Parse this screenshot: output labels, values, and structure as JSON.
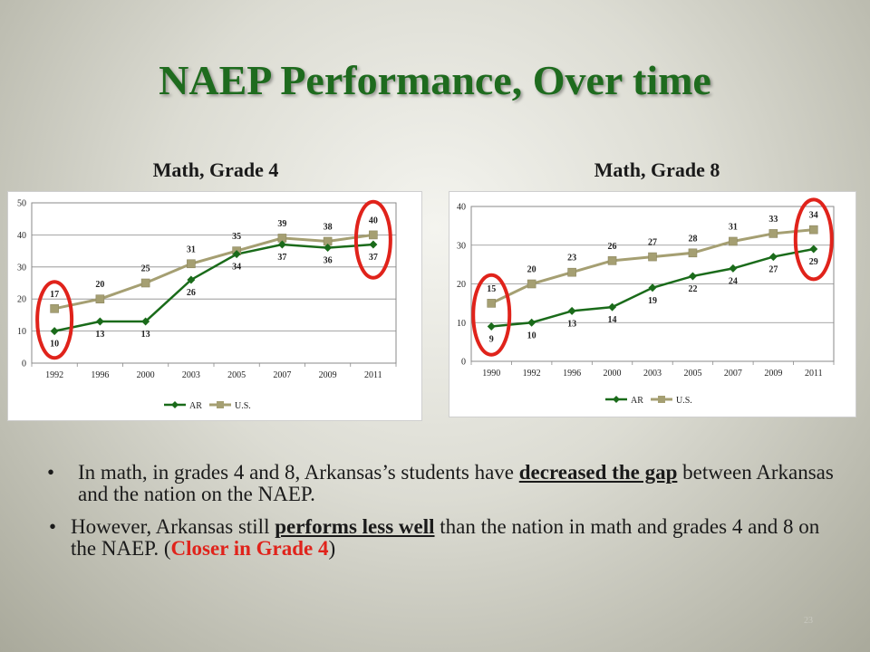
{
  "slide": {
    "title": "NAEP Performance, Over time",
    "page_number": "23",
    "bullets": [
      {
        "marker": "•",
        "parts": [
          "In math, in grades 4 and 8, Arkansas’s students have ",
          "decreased the gap",
          " between Arkansas and the nation on the NAEP."
        ]
      },
      {
        "marker": "•",
        "parts": [
          "However, Arkansas still ",
          "performs less well",
          " than the nation in math and grades 4 and 8 on the NAEP.  (",
          "Closer in Grade 4",
          ")"
        ]
      }
    ]
  },
  "colors": {
    "title": "#1e6b1e",
    "ar_series": "#1a6b1a",
    "us_series": "#a59f72",
    "highlight": "#e0231b"
  },
  "chart_data": [
    {
      "type": "line",
      "title": "Math, Grade 4",
      "categories": [
        "1992",
        "1996",
        "2000",
        "2003",
        "2005",
        "2007",
        "2009",
        "2011"
      ],
      "series": [
        {
          "name": "AR",
          "values": [
            10,
            13,
            13,
            26,
            34,
            37,
            36,
            37
          ],
          "marker": "diamond"
        },
        {
          "name": "U.S.",
          "values": [
            17,
            20,
            25,
            31,
            35,
            39,
            38,
            40
          ],
          "marker": "square"
        }
      ],
      "ylim": [
        0,
        50
      ],
      "yticks": [
        0,
        10,
        20,
        30,
        40,
        50
      ],
      "grid": true,
      "legend": "bottom",
      "highlighted_categories": [
        "1992",
        "2011"
      ]
    },
    {
      "type": "line",
      "title": "Math, Grade 8",
      "categories": [
        "1990",
        "1992",
        "1996",
        "2000",
        "2003",
        "2005",
        "2007",
        "2009",
        "2011"
      ],
      "series": [
        {
          "name": "AR",
          "values": [
            9,
            10,
            13,
            14,
            19,
            22,
            24,
            27,
            29
          ],
          "marker": "diamond"
        },
        {
          "name": "U.S.",
          "values": [
            15,
            20,
            23,
            26,
            27,
            28,
            31,
            33,
            34
          ],
          "marker": "square"
        }
      ],
      "ylim": [
        0,
        40
      ],
      "yticks": [
        0,
        10,
        20,
        30,
        40
      ],
      "grid": true,
      "legend": "bottom",
      "highlighted_categories": [
        "1990",
        "2011"
      ]
    }
  ]
}
